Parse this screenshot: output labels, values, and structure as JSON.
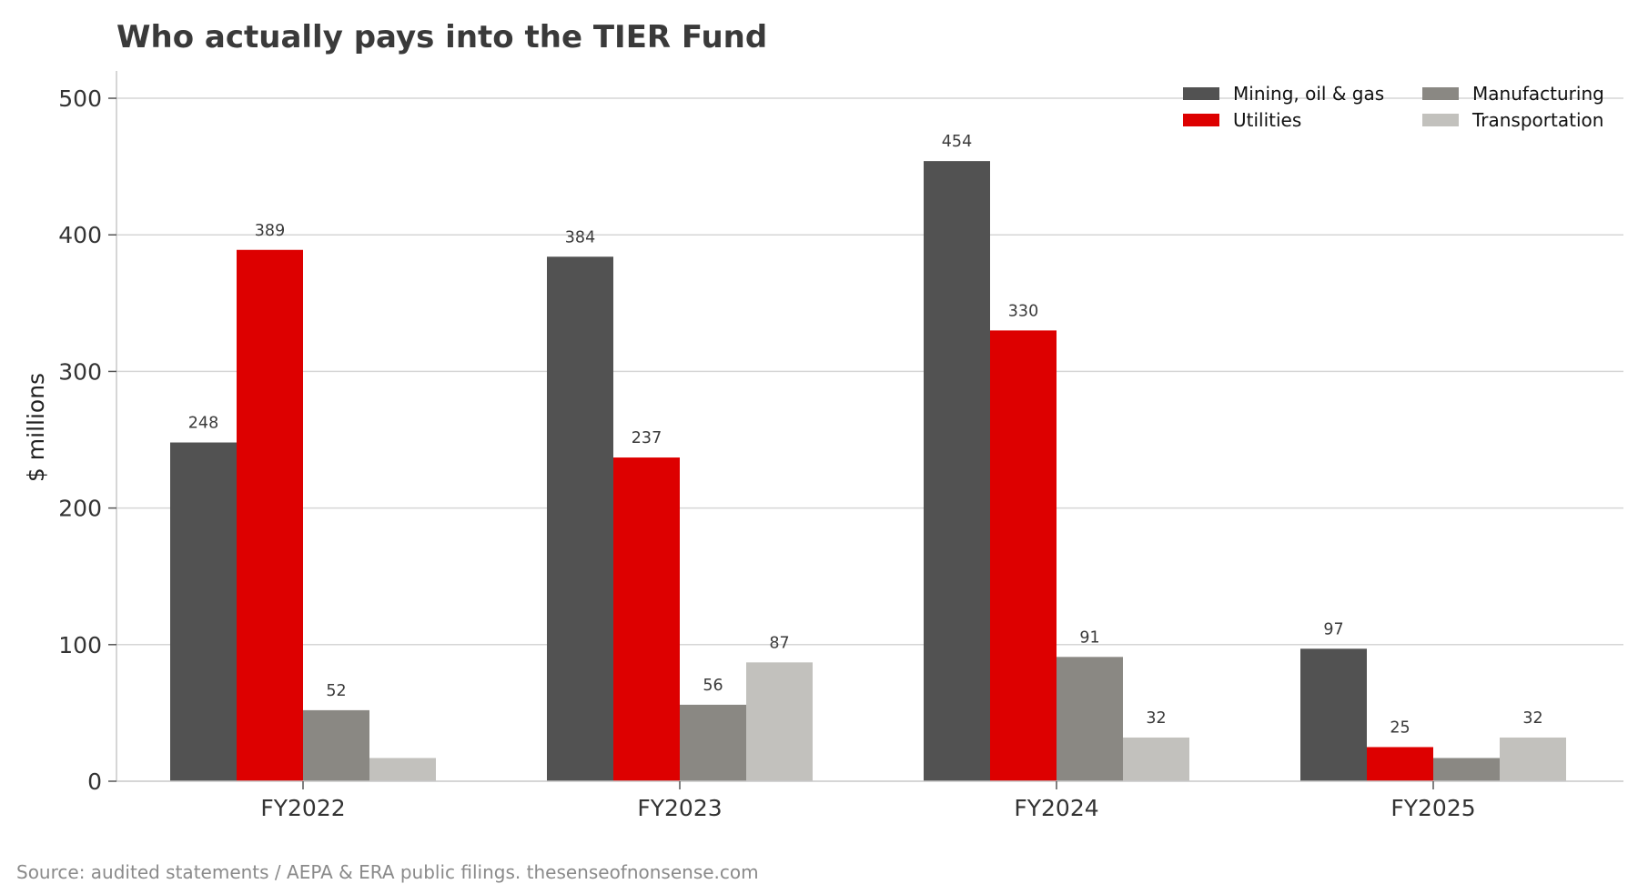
{
  "chart_data": {
    "type": "bar",
    "title": "Who actually pays into the TIER Fund",
    "xlabel": "",
    "ylabel": "$ millions",
    "ylim": [
      0,
      520
    ],
    "yticks": [
      0,
      100,
      200,
      300,
      400,
      500
    ],
    "grid": "horizontal",
    "legend_position": "top-right",
    "categories": [
      "FY2022",
      "FY2023",
      "FY2024",
      "FY2025"
    ],
    "series": [
      {
        "name": "Mining, oil & gas",
        "color": "#525252",
        "values": [
          248,
          384,
          454,
          97
        ],
        "labels": [
          "248",
          "384",
          "454",
          "97"
        ]
      },
      {
        "name": "Utilities",
        "color": "#dd0000",
        "values": [
          389,
          237,
          330,
          25
        ],
        "labels": [
          "389",
          "237",
          "330",
          "25"
        ]
      },
      {
        "name": "Manufacturing",
        "color": "#8a8883",
        "values": [
          52,
          56,
          91,
          17
        ],
        "labels": [
          "52",
          "56",
          "91",
          ""
        ]
      },
      {
        "name": "Transportation",
        "color": "#c2c1bd",
        "values": [
          17,
          87,
          32,
          32
        ],
        "labels": [
          "",
          "87",
          "32",
          "32"
        ]
      }
    ],
    "source": "Source: audited statements / AEPA & ERA public filings. thesenseofnonsense.com"
  }
}
